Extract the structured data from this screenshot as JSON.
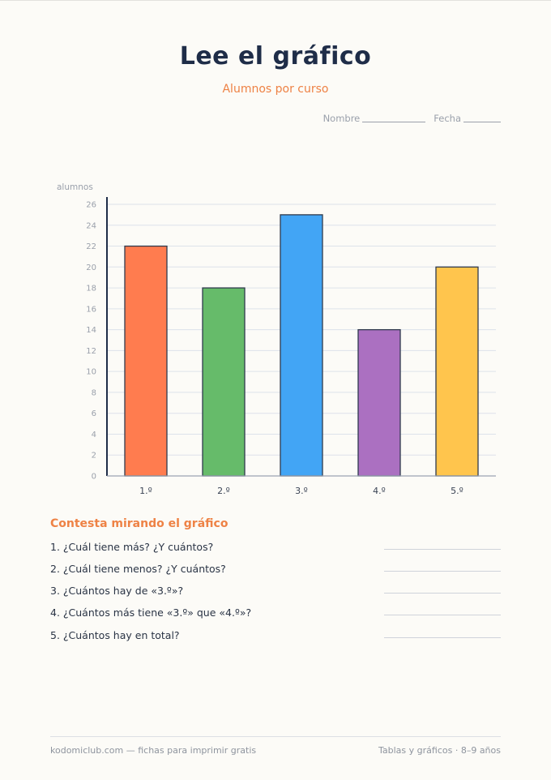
{
  "header": {
    "title": "Lee el gráfico",
    "subtitle": "Alumnos por curso",
    "name_label": "Nombre",
    "date_label": "Fecha"
  },
  "chart_data": {
    "type": "bar",
    "categories": [
      "1.º",
      "2.º",
      "3.º",
      "4.º",
      "5.º"
    ],
    "values": [
      22,
      18,
      25,
      14,
      20
    ],
    "colors": [
      "#ff7c4f",
      "#66bb6a",
      "#42a5f5",
      "#ab70c1",
      "#ffc54d"
    ],
    "ylabel": "alumnos",
    "xlabel": "",
    "ylim": [
      0,
      26
    ],
    "yticks": [
      0,
      2,
      4,
      6,
      8,
      10,
      12,
      14,
      16,
      18,
      20,
      22,
      24,
      26
    ],
    "grid": true
  },
  "questions": {
    "heading": "Contesta mirando el gráfico",
    "items": [
      "1. ¿Cuál tiene más? ¿Y cuántos?",
      "2. ¿Cuál tiene menos? ¿Y cuántos?",
      "3. ¿Cuántos hay de «3.º»?",
      "4. ¿Cuántos más tiene «3.º» que «4.º»?",
      "5. ¿Cuántos hay en total?"
    ]
  },
  "footer": {
    "left": "kodomiclub.com — fichas para imprimir gratis",
    "right": "Tablas y gráficos · 8–9 años"
  }
}
